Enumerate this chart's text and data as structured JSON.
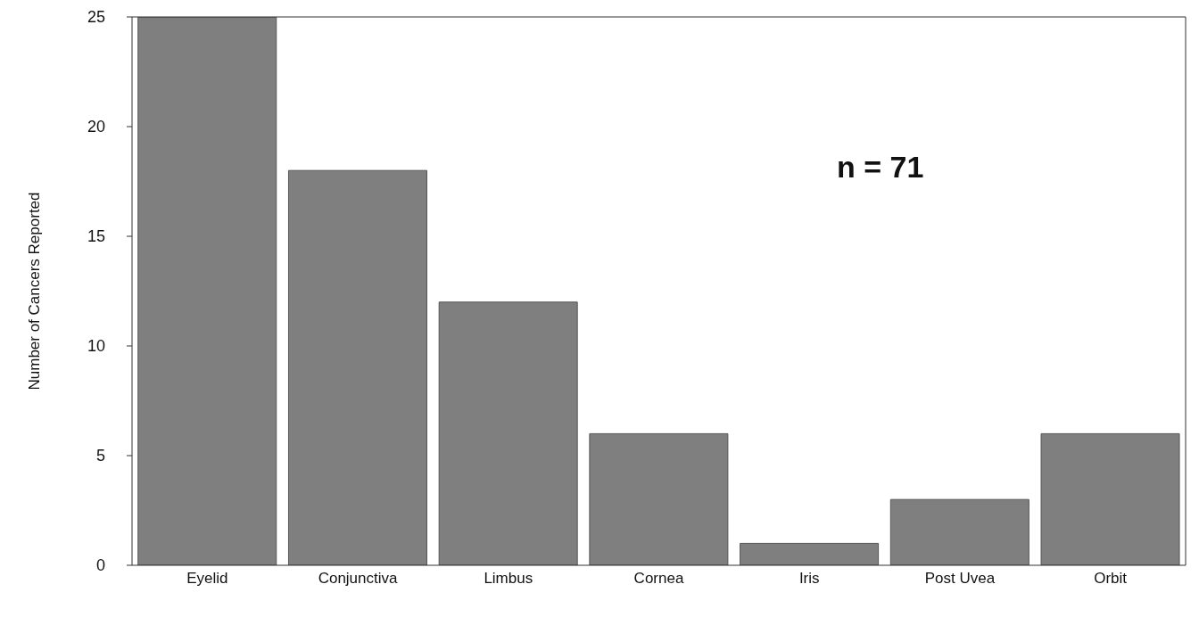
{
  "chart_data": {
    "type": "bar",
    "ylabel": "Number of Cancers Reported",
    "categories": [
      "Eyelid",
      "Conjunctiva",
      "Limbus",
      "Cornea",
      "Iris",
      "Post Uvea",
      "Orbit"
    ],
    "values": [
      25,
      18,
      12,
      6,
      1,
      3,
      6
    ],
    "color": "#7f7f7f",
    "ylim": [
      0,
      25
    ],
    "yticks": [
      0,
      5,
      10,
      15,
      20,
      25
    ],
    "grid": false,
    "annotations": [
      "n = 71"
    ]
  }
}
